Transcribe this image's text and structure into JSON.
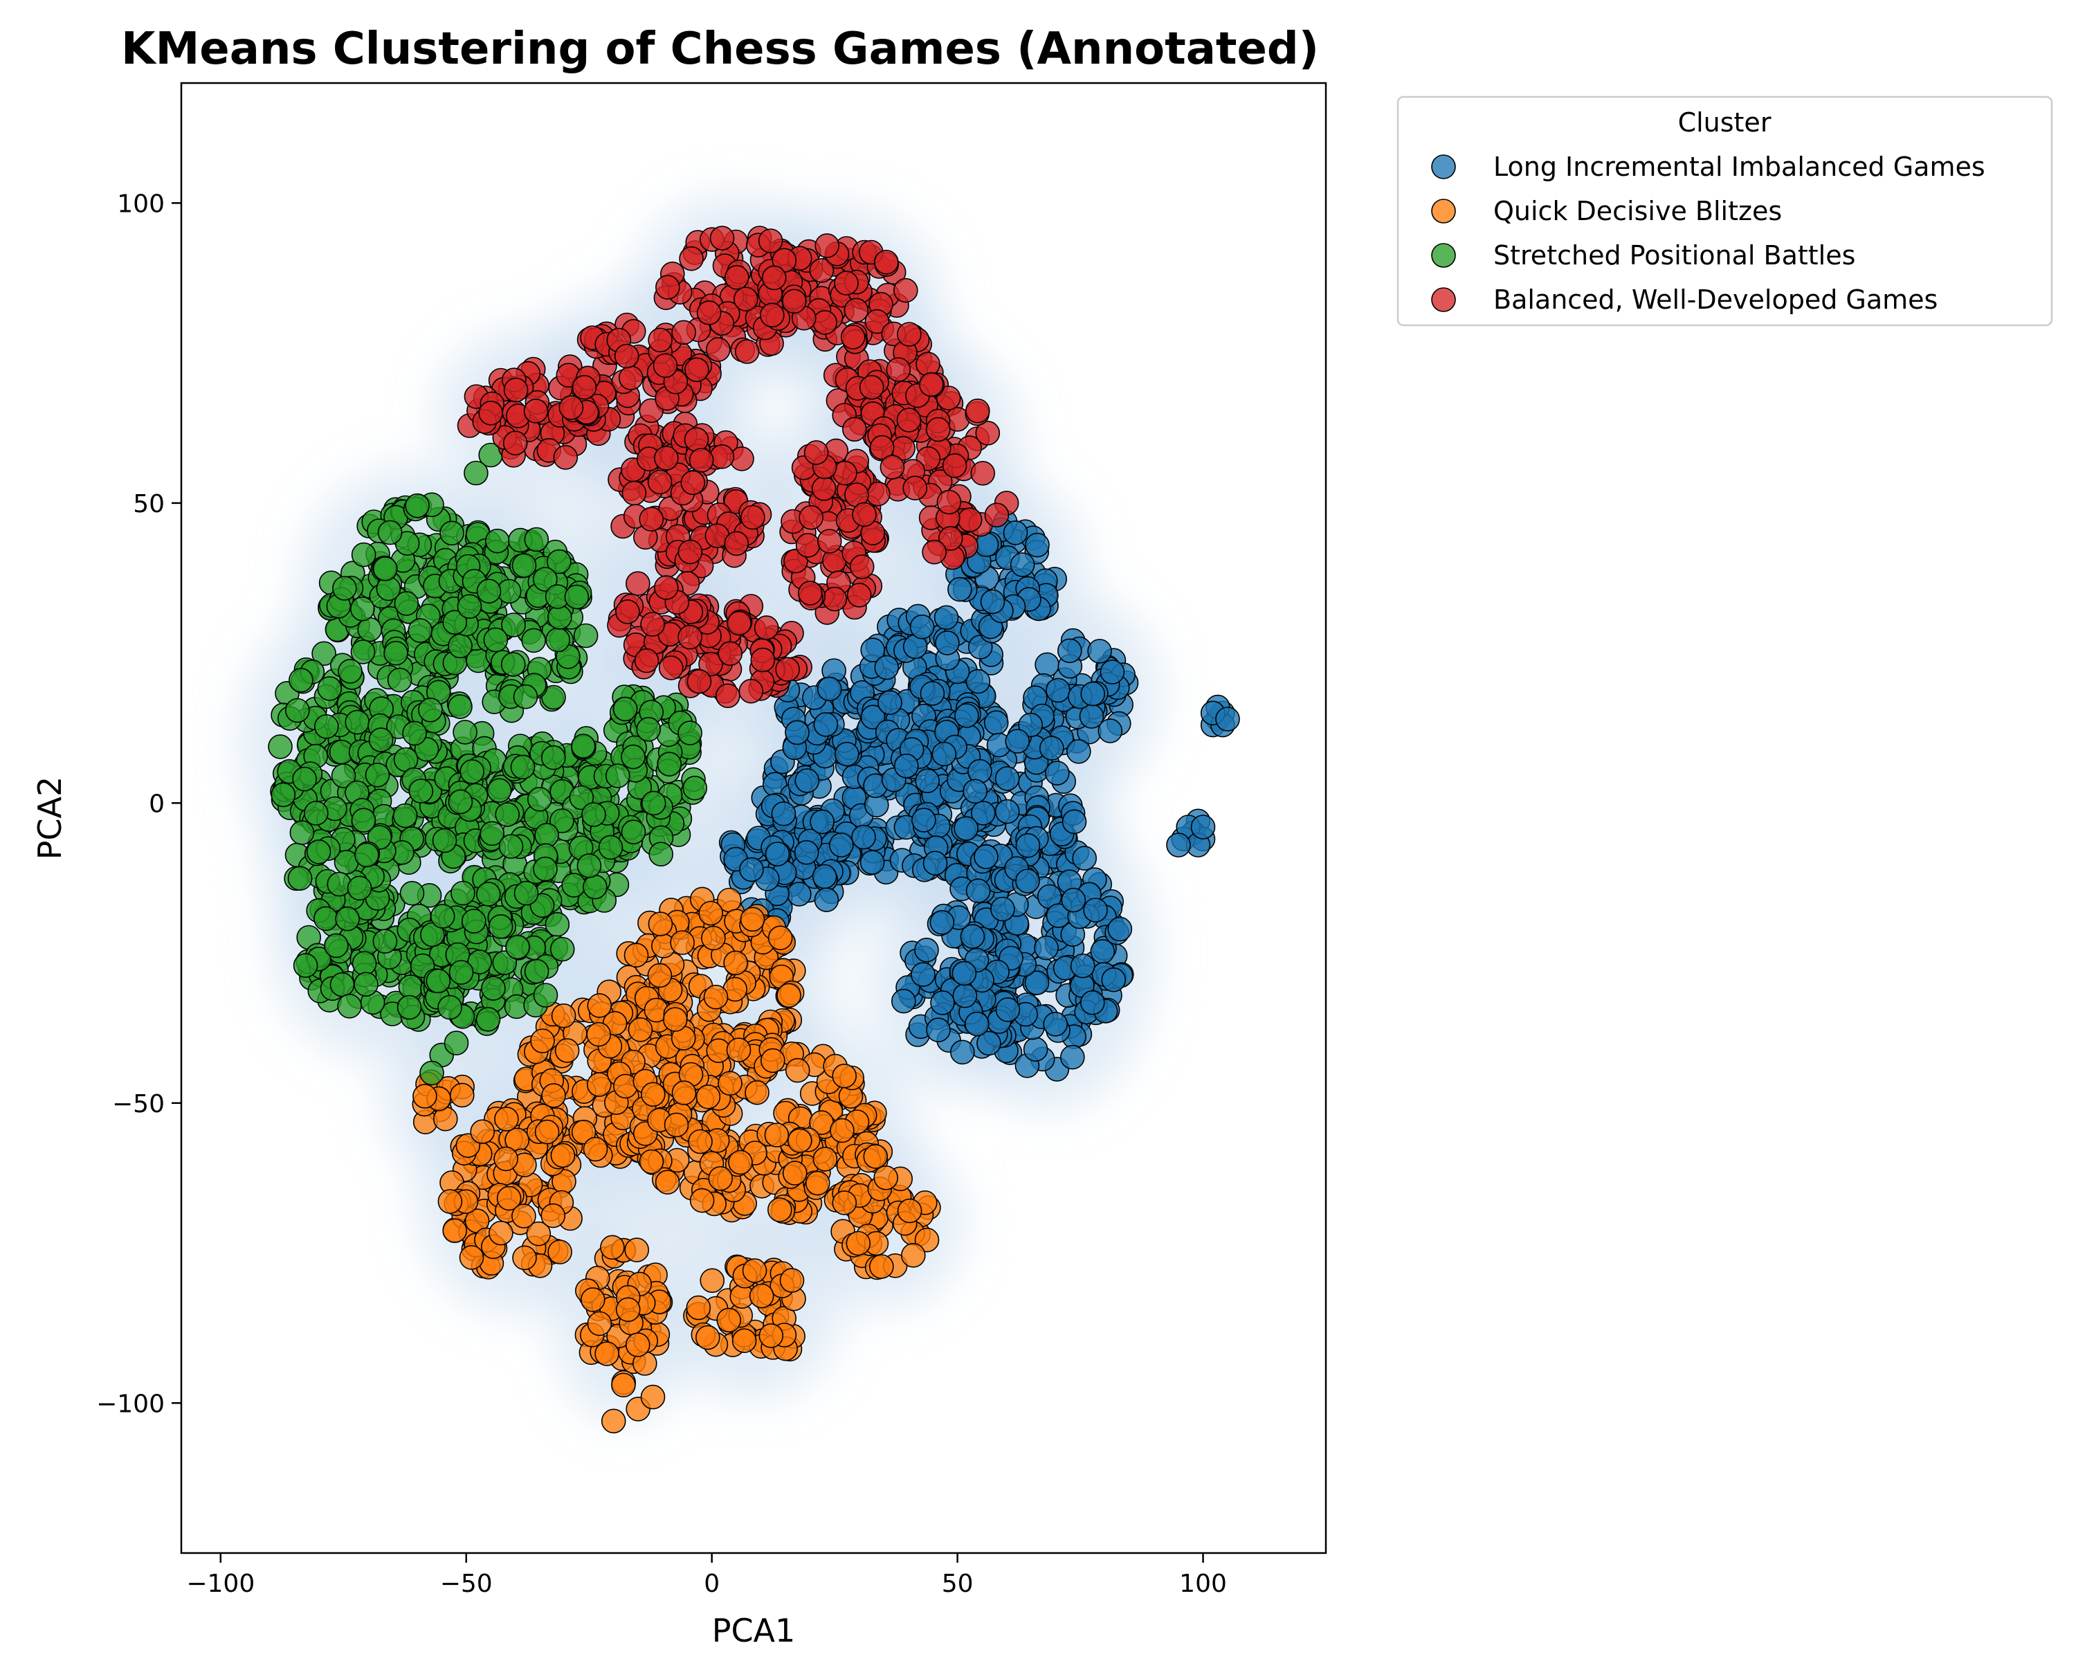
{
  "chart_data": {
    "type": "scatter",
    "title": "KMeans Clustering of Chess Games (Annotated)",
    "xlabel": "PCA1",
    "ylabel": "PCA2",
    "xlim": [
      -108,
      125
    ],
    "ylim": [
      -125,
      120
    ],
    "xticks": [
      -100,
      -50,
      0,
      50,
      100
    ],
    "yticks": [
      -100,
      -50,
      0,
      50,
      100
    ],
    "xtick_labels": [
      "−100",
      "−50",
      "0",
      "50",
      "100"
    ],
    "ytick_labels": [
      "−100",
      "−50",
      "0",
      "50",
      "100"
    ],
    "grid": false,
    "density_background": true,
    "legend_title": "Cluster",
    "legend_position": "outside-top-right",
    "series": [
      {
        "name": "Long Incremental Imbalanced Games",
        "color": "#1f77b4",
        "regions": [
          {
            "cx": 30,
            "cy": 0,
            "rx": 20,
            "ry": 12
          },
          {
            "cx": 25,
            "cy": 15,
            "rx": 12,
            "ry": 8
          },
          {
            "cx": 45,
            "cy": 20,
            "rx": 15,
            "ry": 12
          },
          {
            "cx": 60,
            "cy": 38,
            "rx": 10,
            "ry": 10
          },
          {
            "cx": 75,
            "cy": 18,
            "rx": 10,
            "ry": 10
          },
          {
            "cx": 68,
            "cy": -25,
            "rx": 16,
            "ry": 20
          },
          {
            "cx": 50,
            "cy": -30,
            "rx": 12,
            "ry": 12
          },
          {
            "cx": 55,
            "cy": 0,
            "rx": 20,
            "ry": 15
          },
          {
            "cx": 15,
            "cy": -10,
            "rx": 12,
            "ry": 10
          }
        ],
        "points": [
          {
            "x": 103,
            "y": 14
          },
          {
            "x": 104,
            "y": 15
          },
          {
            "x": 102,
            "y": 13
          },
          {
            "x": 104,
            "y": 13
          },
          {
            "x": 103,
            "y": 16
          },
          {
            "x": 102,
            "y": 15
          },
          {
            "x": 105,
            "y": 14
          },
          {
            "x": 99,
            "y": -3
          },
          {
            "x": 98,
            "y": -5
          },
          {
            "x": 100,
            "y": -6
          },
          {
            "x": 96,
            "y": -6
          },
          {
            "x": 97,
            "y": -4
          },
          {
            "x": 99,
            "y": -7
          },
          {
            "x": 100,
            "y": -4
          },
          {
            "x": 95,
            "y": -7
          }
        ]
      },
      {
        "name": "Quick Decisive Blitzes",
        "color": "#ff7f0e",
        "regions": [
          {
            "cx": 0,
            "cy": -30,
            "rx": 18,
            "ry": 15
          },
          {
            "cx": -20,
            "cy": -45,
            "rx": 18,
            "ry": 14
          },
          {
            "cx": 10,
            "cy": -55,
            "rx": 25,
            "ry": 15
          },
          {
            "cx": -40,
            "cy": -65,
            "rx": 14,
            "ry": 14
          },
          {
            "cx": -18,
            "cy": -85,
            "rx": 8,
            "ry": 12
          },
          {
            "cx": 8,
            "cy": -85,
            "rx": 12,
            "ry": 8
          },
          {
            "cx": 35,
            "cy": -70,
            "rx": 10,
            "ry": 8
          },
          {
            "cx": -55,
            "cy": -50,
            "rx": 6,
            "ry": 4
          }
        ],
        "points": [
          {
            "x": -15,
            "y": -101
          },
          {
            "x": -20,
            "y": -103
          },
          {
            "x": -12,
            "y": -99
          },
          {
            "x": -18,
            "y": -97
          }
        ]
      },
      {
        "name": "Stretched Positional Battles",
        "color": "#2ca02c",
        "regions": [
          {
            "cx": -60,
            "cy": 35,
            "rx": 18,
            "ry": 15
          },
          {
            "cx": -40,
            "cy": 30,
            "rx": 15,
            "ry": 15
          },
          {
            "cx": -78,
            "cy": 10,
            "rx": 12,
            "ry": 15
          },
          {
            "cx": -60,
            "cy": 5,
            "rx": 15,
            "ry": 15
          },
          {
            "cx": -35,
            "cy": -5,
            "rx": 20,
            "ry": 15
          },
          {
            "cx": -15,
            "cy": 5,
            "rx": 12,
            "ry": 15
          },
          {
            "cx": -65,
            "cy": -25,
            "rx": 18,
            "ry": 12
          },
          {
            "cx": -45,
            "cy": -25,
            "rx": 15,
            "ry": 12
          },
          {
            "cx": -75,
            "cy": -10,
            "rx": 10,
            "ry": 10
          }
        ],
        "points": [
          {
            "x": -55,
            "y": -42
          },
          {
            "x": -57,
            "y": -45
          },
          {
            "x": -52,
            "y": -40
          },
          {
            "x": -45,
            "y": 58
          },
          {
            "x": -48,
            "y": 55
          }
        ]
      },
      {
        "name": "Balanced, Well-Developed Games",
        "color": "#d62728",
        "regions": [
          {
            "cx": -35,
            "cy": 65,
            "rx": 15,
            "ry": 8
          },
          {
            "cx": -15,
            "cy": 70,
            "rx": 15,
            "ry": 10
          },
          {
            "cx": -5,
            "cy": 50,
            "rx": 15,
            "ry": 12
          },
          {
            "cx": 5,
            "cy": 85,
            "rx": 15,
            "ry": 10
          },
          {
            "cx": 25,
            "cy": 85,
            "rx": 15,
            "ry": 8
          },
          {
            "cx": 35,
            "cy": 70,
            "rx": 10,
            "ry": 10
          },
          {
            "cx": 45,
            "cy": 60,
            "rx": 12,
            "ry": 10
          },
          {
            "cx": 25,
            "cy": 45,
            "rx": 10,
            "ry": 15
          },
          {
            "cx": 5,
            "cy": 25,
            "rx": 15,
            "ry": 8
          },
          {
            "cx": -10,
            "cy": 30,
            "rx": 10,
            "ry": 8
          },
          {
            "cx": 50,
            "cy": 45,
            "rx": 6,
            "ry": 6
          }
        ],
        "points": [
          {
            "x": 60,
            "y": 50
          },
          {
            "x": 58,
            "y": 48
          },
          {
            "x": -45,
            "y": 65
          },
          {
            "x": -40,
            "y": 60
          }
        ]
      }
    ]
  }
}
